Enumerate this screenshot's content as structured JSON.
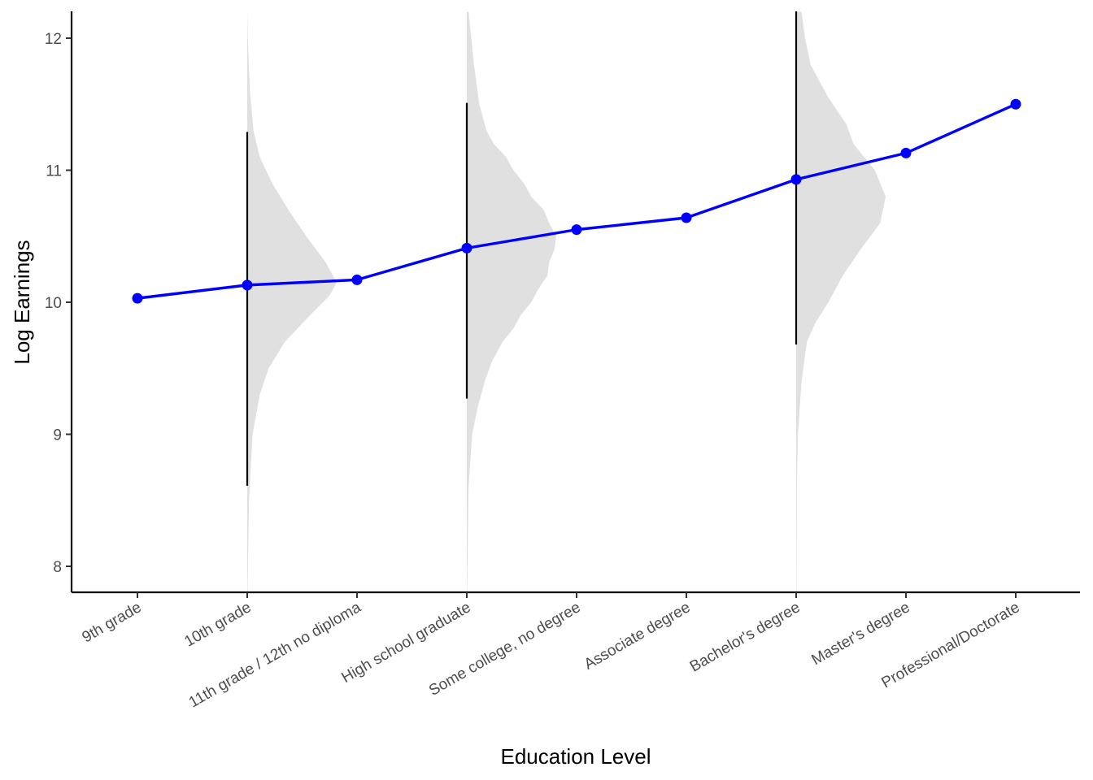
{
  "chart_data": {
    "type": "line",
    "title": "",
    "xlabel": "Education Level",
    "ylabel": "Log Earnings",
    "categories": [
      "9th grade",
      "10th grade",
      "11th grade / 12th no diploma",
      "High school graduate",
      "Some college, no degree",
      "Associate degree",
      "Bachelor's degree",
      "Master's degree",
      "Professional/Doctorate"
    ],
    "series": [
      {
        "values": [
          10.03,
          10.13,
          10.17,
          10.41,
          10.55,
          10.64,
          10.93,
          11.13,
          11.5
        ],
        "color": "#0000ff"
      }
    ],
    "intervals": [
      {
        "category": "10th grade",
        "low": 8.61,
        "high": 11.29
      },
      {
        "category": "High school graduate",
        "low": 9.27,
        "high": 11.51
      },
      {
        "category": "Bachelor's degree",
        "low": 9.68,
        "high": 12.22
      }
    ],
    "distributions": [
      {
        "category": "10th grade",
        "y": [
          7.8,
          8.5,
          9.0,
          9.3,
          9.5,
          9.7,
          9.9,
          10.05,
          10.15,
          10.3,
          10.5,
          10.7,
          10.9,
          11.1,
          11.3,
          11.6,
          12.0,
          12.2
        ],
        "density": [
          0.004,
          0.02,
          0.06,
          0.14,
          0.24,
          0.42,
          0.7,
          0.92,
          1.0,
          0.88,
          0.66,
          0.46,
          0.28,
          0.14,
          0.07,
          0.03,
          0.006,
          0.0
        ]
      },
      {
        "category": "High school graduate",
        "y": [
          7.8,
          8.6,
          9.0,
          9.2,
          9.4,
          9.55,
          9.7,
          9.8,
          9.9,
          10.0,
          10.1,
          10.2,
          10.3,
          10.4,
          10.5,
          10.6,
          10.7,
          10.8,
          10.9,
          11.0,
          11.1,
          11.2,
          11.3,
          11.5,
          11.8,
          12.2
        ],
        "density": [
          0.004,
          0.02,
          0.06,
          0.12,
          0.2,
          0.28,
          0.4,
          0.52,
          0.6,
          0.72,
          0.8,
          0.9,
          0.92,
          0.98,
          1.0,
          0.92,
          0.86,
          0.72,
          0.64,
          0.52,
          0.44,
          0.3,
          0.22,
          0.14,
          0.08,
          0.02
        ]
      },
      {
        "category": "Bachelor's degree",
        "y": [
          7.8,
          8.6,
          9.0,
          9.4,
          9.7,
          9.85,
          10.0,
          10.2,
          10.4,
          10.6,
          10.8,
          11.0,
          11.2,
          11.35,
          11.55,
          11.8,
          12.0,
          12.2
        ],
        "density": [
          0.004,
          0.008,
          0.02,
          0.06,
          0.12,
          0.22,
          0.36,
          0.52,
          0.72,
          0.94,
          1.0,
          0.88,
          0.64,
          0.56,
          0.36,
          0.16,
          0.1,
          0.06
        ]
      }
    ],
    "ylim": [
      7.8,
      12.2
    ],
    "yticks": [
      8,
      9,
      10,
      11,
      12
    ],
    "grid": false,
    "legend": "none"
  }
}
